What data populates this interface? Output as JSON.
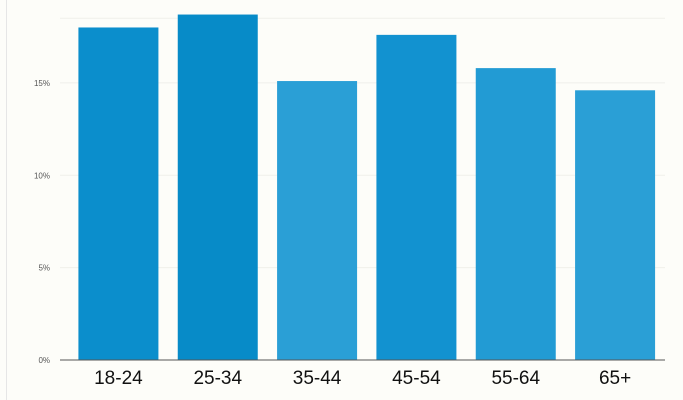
{
  "chart_data": {
    "type": "bar",
    "categories": [
      "18-24",
      "25-34",
      "35-44",
      "45-54",
      "55-64",
      "65+"
    ],
    "values": [
      18.0,
      18.7,
      15.1,
      17.6,
      15.8,
      14.6
    ],
    "title": "",
    "xlabel": "",
    "ylabel": "",
    "ylim": [
      0,
      19
    ],
    "yticks": [
      0,
      5,
      10,
      15
    ],
    "ytick_labels": [
      "0%",
      "5%",
      "10%",
      "15%"
    ],
    "colors": [
      "#0b8ecc",
      "#078bc8",
      "#2a9fd6",
      "#1292d0",
      "#229bd4",
      "#2a9fd6"
    ],
    "grid": true,
    "legend": "none"
  }
}
